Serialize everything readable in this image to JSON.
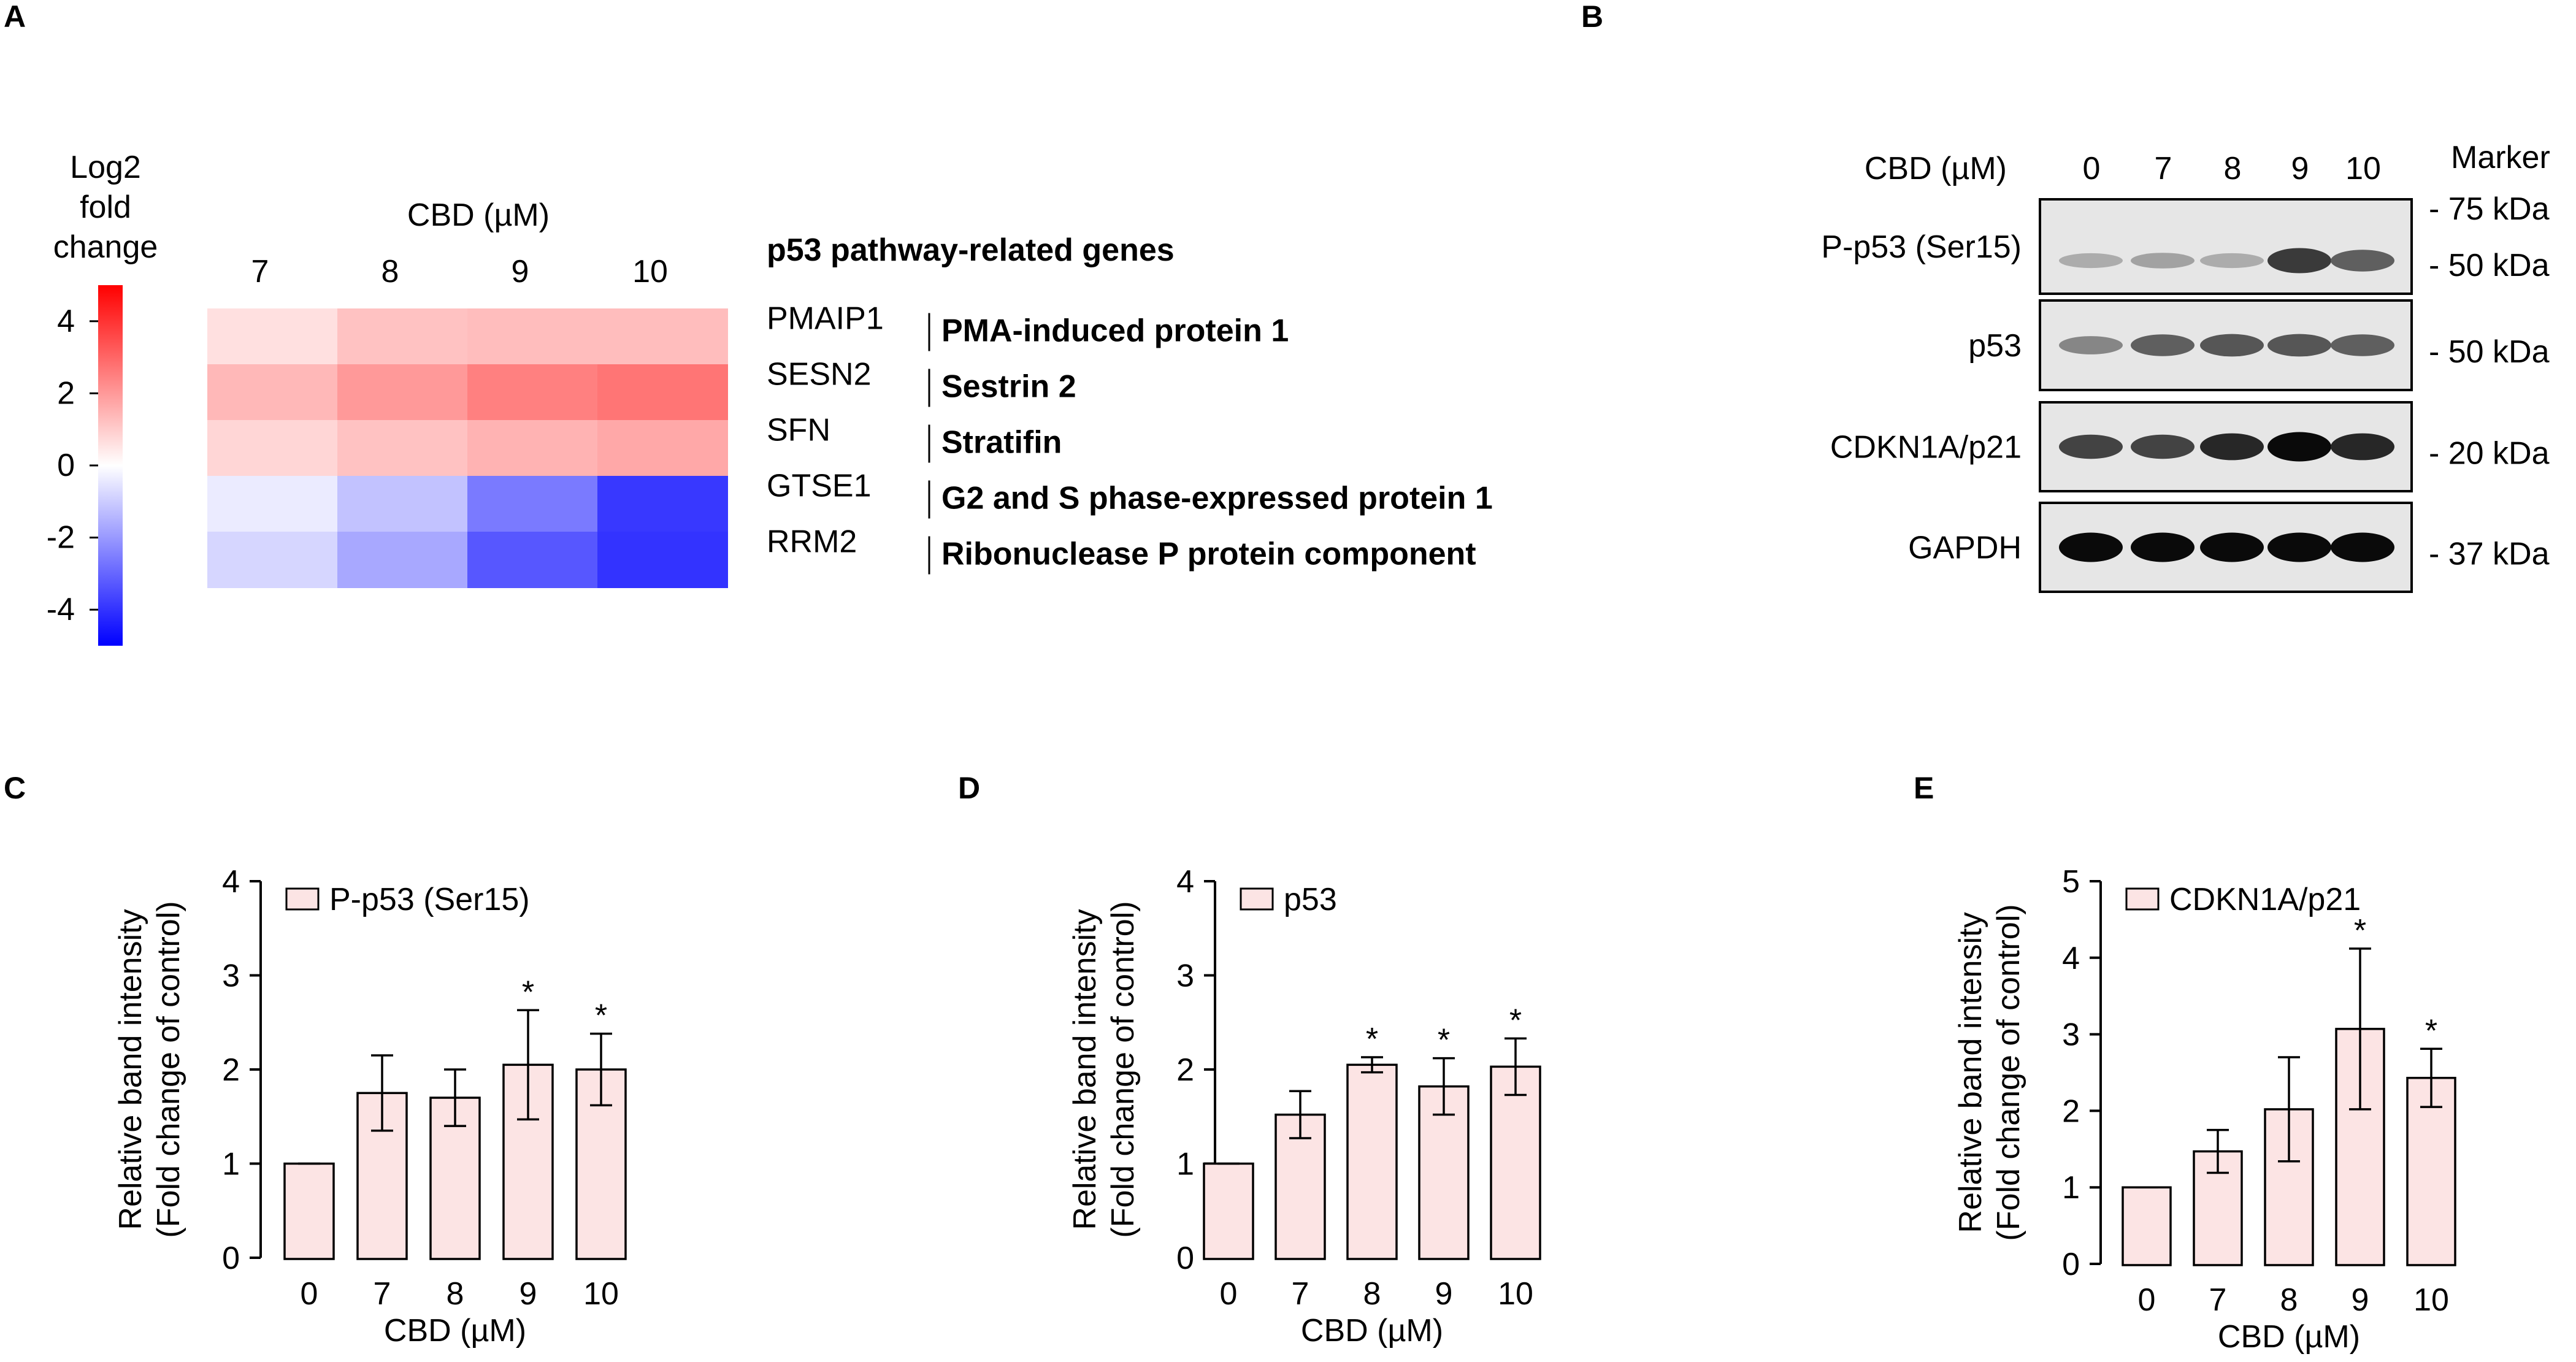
{
  "panel_letters": {
    "a": "A",
    "b": "B",
    "c": "C",
    "d": "D",
    "e": "E"
  },
  "colors": {
    "bar_fill": "#fce4e4",
    "heat_high": "#ff0000",
    "heat_mid": "#ffffff",
    "heat_low": "#0000ff",
    "axis": "#000000",
    "blot_bg": "#d9d9d9"
  },
  "chart_data": [
    {
      "type": "heatmap",
      "panel": "A",
      "title": "CBD (µM)",
      "columns": [
        "7",
        "8",
        "9",
        "10"
      ],
      "genes_header": "p53 pathway-related genes",
      "colorbar_title": [
        "Log2",
        "fold",
        "change"
      ],
      "colorbar_ticks": [
        "4",
        "2",
        "0",
        "-2",
        "-4"
      ],
      "colorbar_range": [
        -5,
        5
      ],
      "rows": [
        {
          "gene": "PMAIP1",
          "name": "PMA-induced protein 1",
          "values": [
            0.6,
            1.2,
            1.3,
            1.3
          ]
        },
        {
          "gene": "SESN2",
          "name": "Sestrin 2",
          "values": [
            1.4,
            2.0,
            2.5,
            2.7
          ]
        },
        {
          "gene": "SFN",
          "name": "Stratifin",
          "values": [
            0.8,
            1.2,
            1.5,
            1.7
          ]
        },
        {
          "gene": "GTSE1",
          "name": "G2 and S phase-expressed protein 1",
          "values": [
            -0.4,
            -1.2,
            -2.6,
            -3.9
          ]
        },
        {
          "gene": "RRM2",
          "name": "Ribonuclease P protein component",
          "values": [
            -0.8,
            -1.7,
            -3.3,
            -4.0
          ]
        }
      ]
    },
    {
      "type": "bar",
      "panel": "C",
      "legend": "P-p53 (Ser15)",
      "categories": [
        "0",
        "7",
        "8",
        "9",
        "10"
      ],
      "values": [
        1.0,
        1.75,
        1.7,
        2.05,
        2.0
      ],
      "errors": [
        0.0,
        0.4,
        0.3,
        0.58,
        0.38
      ],
      "significant": [
        false,
        false,
        false,
        true,
        true
      ],
      "ylim": [
        0,
        4
      ],
      "yticks": [
        "0",
        "1",
        "2",
        "3",
        "4"
      ],
      "xlabel": "CBD (µM)",
      "ylabel": [
        "Relative band intensity",
        "(Fold change of control)"
      ]
    },
    {
      "type": "bar",
      "panel": "D",
      "legend": "p53",
      "categories": [
        "0",
        "7",
        "8",
        "9",
        "10"
      ],
      "values": [
        1.0,
        1.52,
        2.05,
        1.82,
        2.03
      ],
      "errors": [
        0.0,
        0.25,
        0.08,
        0.3,
        0.3
      ],
      "significant": [
        false,
        false,
        true,
        true,
        true
      ],
      "ylim": [
        0,
        4
      ],
      "yticks": [
        "0",
        "1",
        "2",
        "3",
        "4"
      ],
      "xlabel": "CBD (µM)",
      "ylabel": [
        "Relative band intensity",
        "(Fold change of control)"
      ]
    },
    {
      "type": "bar",
      "panel": "E",
      "legend": "CDKN1A/p21",
      "categories": [
        "0",
        "7",
        "8",
        "9",
        "10"
      ],
      "values": [
        1.0,
        1.47,
        2.02,
        3.07,
        2.43
      ],
      "errors": [
        0.0,
        0.28,
        0.68,
        1.05,
        0.38
      ],
      "significant": [
        false,
        false,
        false,
        true,
        true
      ],
      "ylim": [
        0,
        5
      ],
      "yticks": [
        "0",
        "1",
        "2",
        "3",
        "4",
        "5"
      ],
      "xlabel": "CBD (µM)",
      "ylabel": [
        "Relative band intensity",
        "(Fold change of control)"
      ]
    }
  ],
  "western_blot": {
    "header_label": "CBD (µM)",
    "lanes": [
      "0",
      "7",
      "8",
      "9",
      "10"
    ],
    "marker_label": "Marker",
    "blots": [
      {
        "label": "P-p53 (Ser15)",
        "markers": [
          "- 75 kDa",
          "- 50 kDa"
        ],
        "intensities": [
          0.15,
          0.2,
          0.15,
          0.75,
          0.55
        ]
      },
      {
        "label": "p53",
        "markers": [
          "- 50 kDa"
        ],
        "intensities": [
          0.35,
          0.55,
          0.6,
          0.6,
          0.55
        ]
      },
      {
        "label": "CDKN1A/p21",
        "markers": [
          "- 20 kDa"
        ],
        "intensities": [
          0.7,
          0.7,
          0.85,
          1.0,
          0.85
        ]
      },
      {
        "label": "GAPDH",
        "markers": [
          "- 37 kDa"
        ],
        "intensities": [
          1.0,
          1.0,
          1.0,
          1.0,
          1.0
        ]
      }
    ]
  },
  "significance_symbol": "*"
}
